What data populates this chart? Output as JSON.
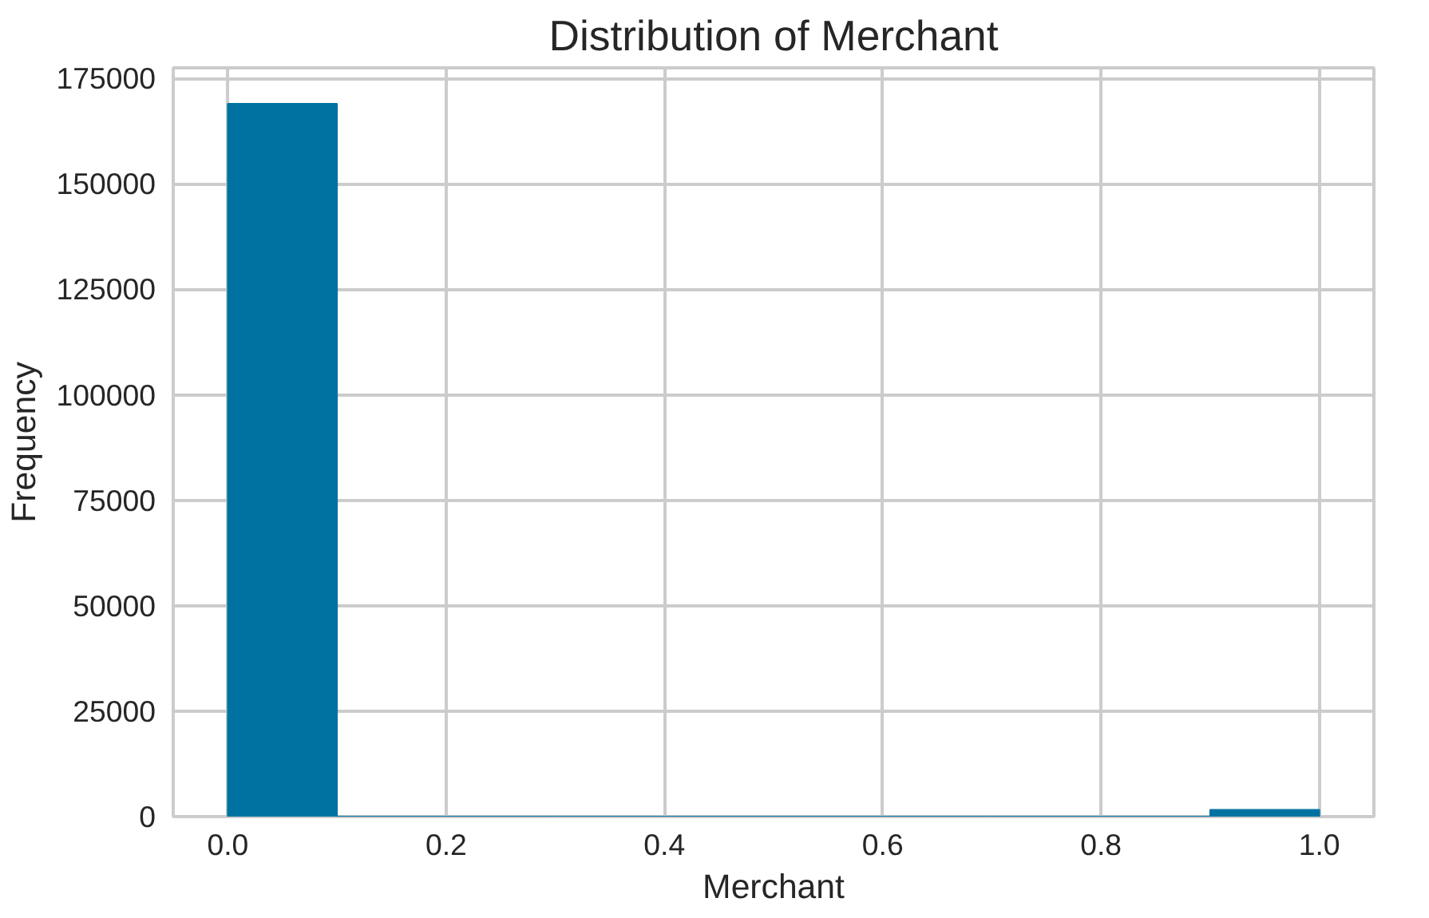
{
  "chart_data": {
    "type": "histogram",
    "title": "Distribution of Merchant",
    "xlabel": "Merchant",
    "ylabel": "Frequency",
    "bins": [
      0.0,
      0.1,
      0.2,
      0.3,
      0.4,
      0.5,
      0.6,
      0.7,
      0.8,
      0.9,
      1.0
    ],
    "values": [
      169000,
      0,
      0,
      0,
      0,
      0,
      0,
      0,
      0,
      1600
    ],
    "color": "#0072a2",
    "xlim": [
      -0.05,
      1.05
    ],
    "xticks": [
      {
        "value": 0,
        "label": "0.0"
      },
      {
        "value": 0.2,
        "label": "0.2"
      },
      {
        "value": 0.4,
        "label": "0.4"
      },
      {
        "value": 0.6,
        "label": "0.6"
      },
      {
        "value": 0.8,
        "label": "0.8"
      },
      {
        "value": 1,
        "label": "1.0"
      }
    ],
    "ylim": [
      0,
      177500
    ],
    "yticks": [
      0,
      25000,
      50000,
      75000,
      100000,
      125000,
      150000,
      175000
    ],
    "grid": true
  }
}
